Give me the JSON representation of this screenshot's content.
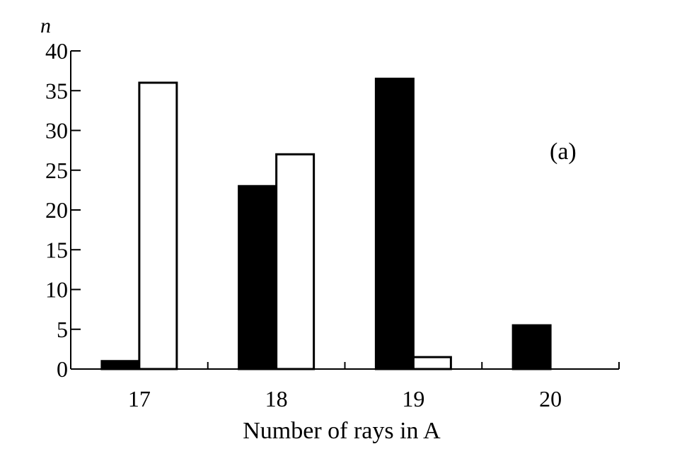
{
  "chart_data": {
    "type": "bar",
    "title": "",
    "ylabel": "n",
    "xlabel": "Number of rays in A",
    "annotation": "(a)",
    "categories": [
      "17",
      "18",
      "19",
      "20"
    ],
    "yticks": [
      "0",
      "5",
      "10",
      "15",
      "20",
      "25",
      "30",
      "35",
      "40"
    ],
    "ylim": [
      0,
      40
    ],
    "grid": false,
    "legend": "none",
    "series": [
      {
        "fill": "#000000",
        "values": [
          1,
          23,
          36.5,
          5.5
        ]
      },
      {
        "fill": "#ffffff",
        "values": [
          36,
          27,
          1.5,
          0
        ]
      }
    ]
  }
}
